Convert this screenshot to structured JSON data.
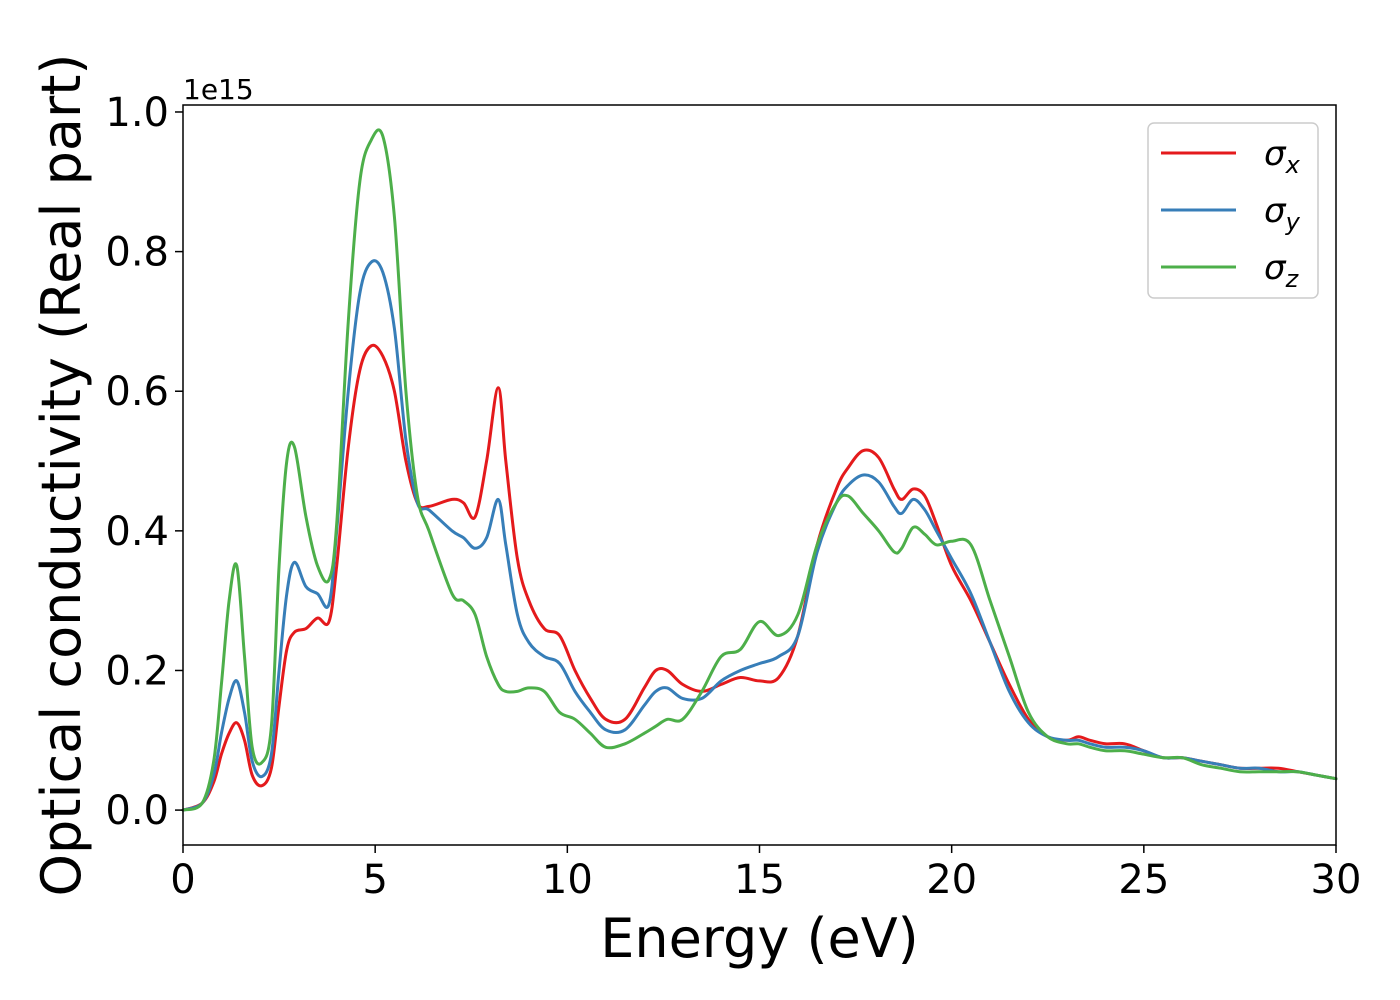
{
  "chart_data": {
    "type": "line",
    "title": "",
    "xlabel": "Energy (eV)",
    "ylabel": "Optical conductivity (Real part)",
    "y_offset_label": "1e15",
    "xlim": [
      0,
      30
    ],
    "ylim": [
      -0.05,
      1.01
    ],
    "xticks": [
      0,
      5,
      10,
      15,
      20,
      25,
      30
    ],
    "xtick_labels": [
      "0",
      "5",
      "10",
      "15",
      "20",
      "25",
      "30"
    ],
    "yticks": [
      0.0,
      0.2,
      0.4,
      0.6,
      0.8,
      1.0
    ],
    "ytick_labels": [
      "0.0",
      "0.2",
      "0.4",
      "0.6",
      "0.8",
      "1.0"
    ],
    "grid": false,
    "legend_position": "top-right",
    "series": [
      {
        "name": "σx",
        "symbol": "σ",
        "subscript": "x",
        "color": "#e41a1c",
        "x": [
          0,
          0.5,
          0.8,
          1.0,
          1.2,
          1.4,
          1.6,
          1.8,
          2.05,
          2.3,
          2.5,
          2.7,
          2.9,
          3.2,
          3.5,
          3.8,
          4.0,
          4.3,
          4.6,
          4.9,
          5.2,
          5.5,
          5.8,
          6.1,
          6.4,
          7.0,
          7.3,
          7.6,
          7.9,
          8.2,
          8.4,
          8.7,
          9.0,
          9.4,
          9.8,
          10.2,
          10.6,
          11.0,
          11.5,
          12.0,
          12.3,
          12.6,
          13.0,
          13.5,
          14.0,
          14.5,
          15.0,
          15.5,
          16.0,
          16.5,
          17.0,
          17.3,
          17.7,
          18.1,
          18.5,
          18.7,
          19.0,
          19.3,
          19.6,
          20.0,
          20.5,
          21.0,
          21.5,
          22.0,
          22.5,
          23.0,
          23.3,
          23.6,
          24.0,
          24.5,
          25.0,
          25.5,
          26.0,
          26.5,
          27.0,
          27.5,
          28.0,
          28.5,
          29.0,
          29.5,
          30.0
        ],
        "values": [
          0.0,
          0.01,
          0.04,
          0.08,
          0.11,
          0.125,
          0.1,
          0.05,
          0.035,
          0.06,
          0.15,
          0.23,
          0.255,
          0.26,
          0.275,
          0.27,
          0.35,
          0.52,
          0.63,
          0.665,
          0.65,
          0.6,
          0.5,
          0.44,
          0.435,
          0.445,
          0.44,
          0.42,
          0.5,
          0.605,
          0.5,
          0.36,
          0.3,
          0.26,
          0.25,
          0.2,
          0.16,
          0.13,
          0.13,
          0.175,
          0.2,
          0.2,
          0.18,
          0.17,
          0.18,
          0.19,
          0.185,
          0.19,
          0.25,
          0.38,
          0.46,
          0.49,
          0.515,
          0.505,
          0.46,
          0.445,
          0.46,
          0.45,
          0.41,
          0.35,
          0.3,
          0.24,
          0.18,
          0.13,
          0.105,
          0.1,
          0.105,
          0.1,
          0.095,
          0.095,
          0.085,
          0.075,
          0.075,
          0.07,
          0.065,
          0.06,
          0.06,
          0.06,
          0.055,
          0.05,
          0.045
        ]
      },
      {
        "name": "σy",
        "symbol": "σ",
        "subscript": "y",
        "color": "#377eb8",
        "x": [
          0,
          0.5,
          0.8,
          1.0,
          1.2,
          1.4,
          1.6,
          1.8,
          2.05,
          2.3,
          2.5,
          2.7,
          2.9,
          3.2,
          3.5,
          3.8,
          4.0,
          4.3,
          4.6,
          4.9,
          5.2,
          5.5,
          5.8,
          6.1,
          6.4,
          7.0,
          7.3,
          7.6,
          7.9,
          8.2,
          8.4,
          8.7,
          9.0,
          9.4,
          9.8,
          10.2,
          10.6,
          11.0,
          11.5,
          12.0,
          12.3,
          12.6,
          13.0,
          13.5,
          14.0,
          14.5,
          15.0,
          15.5,
          16.0,
          16.5,
          17.0,
          17.3,
          17.7,
          18.1,
          18.5,
          18.7,
          19.0,
          19.3,
          19.6,
          20.0,
          20.5,
          21.0,
          21.5,
          22.0,
          22.5,
          23.0,
          23.3,
          23.6,
          24.0,
          24.5,
          25.0,
          25.5,
          26.0,
          26.5,
          27.0,
          27.5,
          28.0,
          28.5,
          29.0,
          29.5,
          30.0
        ],
        "values": [
          0.0,
          0.01,
          0.05,
          0.11,
          0.16,
          0.185,
          0.14,
          0.07,
          0.048,
          0.08,
          0.2,
          0.31,
          0.355,
          0.32,
          0.31,
          0.295,
          0.4,
          0.6,
          0.74,
          0.785,
          0.77,
          0.69,
          0.53,
          0.44,
          0.43,
          0.4,
          0.39,
          0.375,
          0.39,
          0.445,
          0.38,
          0.28,
          0.24,
          0.22,
          0.21,
          0.17,
          0.14,
          0.115,
          0.115,
          0.15,
          0.17,
          0.175,
          0.16,
          0.16,
          0.185,
          0.2,
          0.21,
          0.22,
          0.25,
          0.37,
          0.44,
          0.465,
          0.48,
          0.47,
          0.435,
          0.425,
          0.445,
          0.43,
          0.4,
          0.36,
          0.31,
          0.24,
          0.17,
          0.125,
          0.105,
          0.1,
          0.1,
          0.095,
          0.09,
          0.09,
          0.085,
          0.075,
          0.075,
          0.07,
          0.065,
          0.06,
          0.06,
          0.055,
          0.055,
          0.05,
          0.045
        ]
      },
      {
        "name": "σz",
        "symbol": "σ",
        "subscript": "z",
        "color": "#4daf4a",
        "x": [
          0,
          0.5,
          0.8,
          1.0,
          1.2,
          1.4,
          1.6,
          1.8,
          2.05,
          2.3,
          2.5,
          2.7,
          2.9,
          3.2,
          3.5,
          3.8,
          4.0,
          4.3,
          4.6,
          4.9,
          5.2,
          5.5,
          5.8,
          6.1,
          6.4,
          7.0,
          7.3,
          7.6,
          7.9,
          8.2,
          8.4,
          8.7,
          9.0,
          9.4,
          9.8,
          10.2,
          10.6,
          11.0,
          11.5,
          12.0,
          12.3,
          12.6,
          13.0,
          13.5,
          14.0,
          14.5,
          15.0,
          15.5,
          16.0,
          16.5,
          17.0,
          17.3,
          17.7,
          18.1,
          18.5,
          18.7,
          19.0,
          19.3,
          19.6,
          20.0,
          20.5,
          21.0,
          21.5,
          22.0,
          22.5,
          23.0,
          23.3,
          23.6,
          24.0,
          24.5,
          25.0,
          25.5,
          26.0,
          26.5,
          27.0,
          27.5,
          28.0,
          28.5,
          29.0,
          29.5,
          30.0
        ],
        "values": [
          0.0,
          0.01,
          0.07,
          0.18,
          0.3,
          0.35,
          0.22,
          0.09,
          0.068,
          0.12,
          0.35,
          0.5,
          0.52,
          0.42,
          0.35,
          0.33,
          0.41,
          0.7,
          0.9,
          0.96,
          0.965,
          0.85,
          0.6,
          0.45,
          0.4,
          0.31,
          0.3,
          0.28,
          0.22,
          0.18,
          0.17,
          0.17,
          0.175,
          0.17,
          0.14,
          0.13,
          0.11,
          0.09,
          0.095,
          0.11,
          0.12,
          0.13,
          0.13,
          0.17,
          0.22,
          0.23,
          0.27,
          0.25,
          0.28,
          0.38,
          0.44,
          0.45,
          0.425,
          0.4,
          0.37,
          0.375,
          0.405,
          0.395,
          0.38,
          0.385,
          0.38,
          0.3,
          0.22,
          0.14,
          0.105,
          0.095,
          0.095,
          0.09,
          0.085,
          0.085,
          0.08,
          0.075,
          0.075,
          0.065,
          0.06,
          0.055,
          0.055,
          0.055,
          0.055,
          0.05,
          0.045
        ]
      }
    ]
  }
}
